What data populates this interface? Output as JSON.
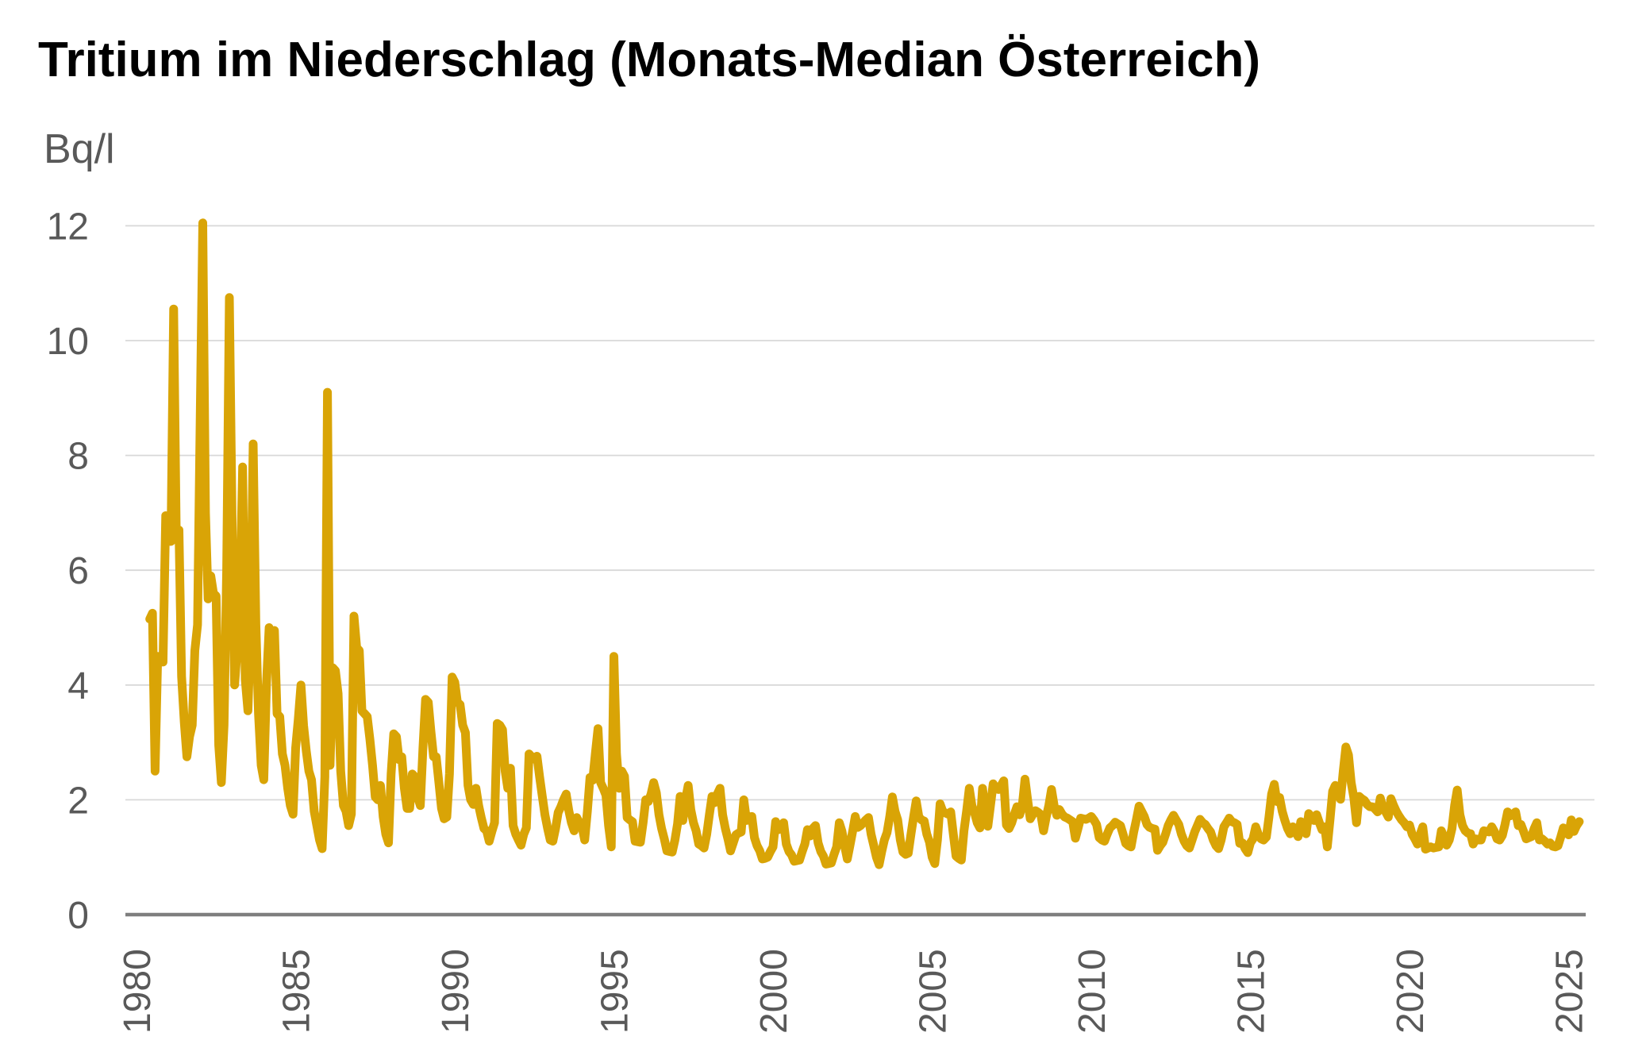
{
  "title": "Tritium im Niederschlag (Monats-Median Österreich)",
  "y_axis": {
    "unit_label": "Bq/l",
    "ticks": [
      12,
      10,
      8,
      6,
      4,
      2,
      0
    ],
    "min": 0,
    "max": 12
  },
  "x_axis": {
    "ticks": [
      "1980",
      "1985",
      "1990",
      "1995",
      "2000",
      "2005",
      "2010",
      "2015",
      "2020",
      "2025"
    ]
  },
  "colors": {
    "line": "#D9A406",
    "grid": "#D8D8D8",
    "axis": "#7F7F7F",
    "tick_label": "#595959",
    "title": "#000000",
    "background": "#FFFFFF"
  },
  "chart_data": {
    "type": "line",
    "title": "Tritium im Niederschlag (Monats-Median Österreich)",
    "ylabel": "Bq/l",
    "xlabel": "",
    "ylim": [
      0,
      12
    ],
    "grid": "horizontal",
    "legend": "none",
    "frequency": "monthly",
    "start": "1980-06",
    "end": "2025-05",
    "series_name": "Tritium Monats-Median (Bq/l)",
    "values": [
      5.15,
      5.25,
      2.5,
      4.5,
      4.45,
      4.4,
      6.95,
      6.55,
      6.5,
      10.55,
      6.6,
      6.7,
      4.15,
      3.35,
      2.75,
      3.1,
      3.3,
      4.6,
      5.05,
      8.6,
      12.05,
      7.0,
      5.5,
      5.9,
      5.6,
      5.55,
      2.95,
      2.3,
      3.3,
      6.0,
      10.75,
      7.0,
      4.0,
      4.65,
      5.5,
      7.8,
      4.1,
      3.55,
      4.95,
      8.2,
      5.05,
      3.5,
      2.6,
      2.35,
      4.0,
      5.0,
      4.6,
      4.95,
      3.5,
      3.45,
      2.8,
      2.6,
      2.2,
      1.9,
      1.75,
      2.9,
      3.4,
      4.0,
      3.3,
      2.85,
      2.5,
      2.35,
      1.8,
      1.55,
      1.3,
      1.15,
      2.4,
      9.1,
      2.6,
      4.3,
      4.25,
      3.85,
      2.5,
      1.9,
      1.8,
      1.55,
      1.75,
      5.2,
      4.65,
      4.6,
      3.55,
      3.5,
      3.45,
      3.05,
      2.6,
      2.05,
      2.0,
      2.25,
      1.7,
      1.4,
      1.25,
      2.45,
      3.15,
      3.1,
      2.7,
      2.75,
      2.2,
      1.85,
      1.85,
      2.45,
      2.4,
      2.05,
      1.9,
      2.9,
      3.75,
      3.7,
      3.2,
      2.75,
      2.75,
      2.3,
      1.85,
      1.67,
      1.7,
      2.45,
      4.14,
      4.05,
      3.7,
      3.66,
      3.3,
      3.17,
      2.25,
      2.0,
      1.92,
      2.2,
      1.9,
      1.69,
      1.5,
      1.46,
      1.28,
      1.45,
      1.6,
      3.33,
      3.3,
      3.22,
      2.5,
      2.2,
      2.55,
      1.55,
      1.4,
      1.3,
      1.21,
      1.4,
      1.51,
      2.8,
      2.75,
      2.71,
      2.76,
      2.4,
      2.06,
      1.74,
      1.5,
      1.3,
      1.28,
      1.5,
      1.78,
      1.88,
      2.0,
      2.1,
      1.81,
      1.6,
      1.46,
      1.69,
      1.6,
      1.53,
      1.3,
      1.8,
      2.39,
      2.34,
      2.8,
      3.24,
      2.3,
      2.2,
      2.08,
      1.55,
      1.18,
      4.5,
      2.8,
      2.2,
      2.5,
      2.41,
      1.69,
      1.65,
      1.62,
      1.28,
      1.27,
      1.26,
      1.6,
      2.0,
      1.97,
      2.1,
      2.3,
      2.12,
      1.74,
      1.5,
      1.32,
      1.11,
      1.1,
      1.09,
      1.3,
      1.58,
      2.06,
      1.64,
      2.0,
      2.25,
      1.83,
      1.6,
      1.46,
      1.23,
      1.2,
      1.16,
      1.4,
      1.74,
      2.06,
      1.95,
      2.1,
      2.2,
      1.74,
      1.5,
      1.32,
      1.11,
      1.25,
      1.39,
      1.42,
      1.44,
      2.0,
      1.64,
      1.7,
      1.71,
      1.34,
      1.2,
      1.11,
      0.97,
      0.98,
      1.0,
      1.1,
      1.18,
      1.62,
      1.48,
      1.55,
      1.6,
      1.23,
      1.1,
      1.04,
      0.93,
      0.94,
      0.95,
      1.1,
      1.23,
      1.48,
      1.37,
      1.5,
      1.55,
      1.25,
      1.1,
      1.02,
      0.88,
      0.89,
      0.9,
      1.05,
      1.18,
      1.6,
      1.45,
      1.2,
      0.97,
      1.2,
      1.45,
      1.71,
      1.52,
      1.55,
      1.6,
      1.65,
      1.69,
      1.4,
      1.2,
      1.0,
      0.87,
      1.1,
      1.3,
      1.43,
      1.7,
      2.05,
      1.8,
      1.65,
      1.3,
      1.09,
      1.05,
      1.07,
      1.4,
      1.7,
      1.98,
      1.7,
      1.65,
      1.63,
      1.4,
      1.26,
      1.0,
      0.89,
      1.3,
      1.93,
      1.8,
      1.77,
      1.75,
      1.79,
      1.4,
      1.02,
      0.98,
      0.95,
      1.46,
      1.8,
      2.2,
      1.9,
      1.77,
      1.6,
      1.51,
      2.2,
      1.8,
      1.54,
      1.9,
      2.28,
      2.2,
      2.18,
      2.25,
      2.33,
      1.56,
      1.5,
      1.6,
      1.75,
      1.88,
      1.74,
      1.9,
      2.36,
      2.0,
      1.67,
      1.75,
      1.81,
      1.78,
      1.74,
      1.46,
      1.7,
      1.9,
      2.18,
      1.9,
      1.73,
      1.83,
      1.75,
      1.7,
      1.68,
      1.65,
      1.62,
      1.33,
      1.5,
      1.68,
      1.67,
      1.66,
      1.68,
      1.71,
      1.65,
      1.57,
      1.34,
      1.3,
      1.28,
      1.4,
      1.51,
      1.55,
      1.61,
      1.58,
      1.55,
      1.4,
      1.24,
      1.2,
      1.18,
      1.44,
      1.65,
      1.89,
      1.8,
      1.71,
      1.57,
      1.52,
      1.5,
      1.49,
      1.12,
      1.2,
      1.26,
      1.4,
      1.55,
      1.65,
      1.73,
      1.65,
      1.57,
      1.4,
      1.28,
      1.2,
      1.16,
      1.3,
      1.44,
      1.55,
      1.66,
      1.6,
      1.57,
      1.5,
      1.44,
      1.3,
      1.2,
      1.15,
      1.3,
      1.53,
      1.6,
      1.68,
      1.62,
      1.6,
      1.57,
      1.24,
      1.25,
      1.15,
      1.08,
      1.25,
      1.32,
      1.53,
      1.4,
      1.32,
      1.3,
      1.35,
      1.7,
      2.1,
      2.27,
      1.97,
      2.04,
      1.8,
      1.64,
      1.5,
      1.41,
      1.53,
      1.45,
      1.36,
      1.62,
      1.5,
      1.41,
      1.76,
      1.7,
      1.64,
      1.74,
      1.6,
      1.48,
      1.53,
      1.18,
      1.65,
      2.15,
      2.25,
      2.1,
      2.01,
      2.5,
      2.92,
      2.78,
      2.3,
      2.04,
      1.6,
      2.06,
      2.02,
      1.99,
      1.92,
      1.88,
      1.88,
      1.84,
      1.79,
      2.03,
      1.85,
      1.79,
      1.7,
      2.02,
      1.9,
      1.8,
      1.72,
      1.65,
      1.6,
      1.53,
      1.56,
      1.4,
      1.32,
      1.23,
      1.4,
      1.53,
      1.14,
      1.16,
      1.18,
      1.16,
      1.17,
      1.18,
      1.46,
      1.35,
      1.21,
      1.3,
      1.5,
      1.9,
      2.17,
      1.74,
      1.55,
      1.46,
      1.42,
      1.41,
      1.23,
      1.32,
      1.3,
      1.3,
      1.46,
      1.45,
      1.44,
      1.53,
      1.45,
      1.32,
      1.3,
      1.38,
      1.57,
      1.79,
      1.72,
      1.75,
      1.79,
      1.55,
      1.57,
      1.45,
      1.32,
      1.34,
      1.36,
      1.5,
      1.6,
      1.3,
      1.32,
      1.28,
      1.23,
      1.25,
      1.19,
      1.18,
      1.2,
      1.35,
      1.51,
      1.45,
      1.39,
      1.65,
      1.45,
      1.55,
      1.62
    ]
  }
}
